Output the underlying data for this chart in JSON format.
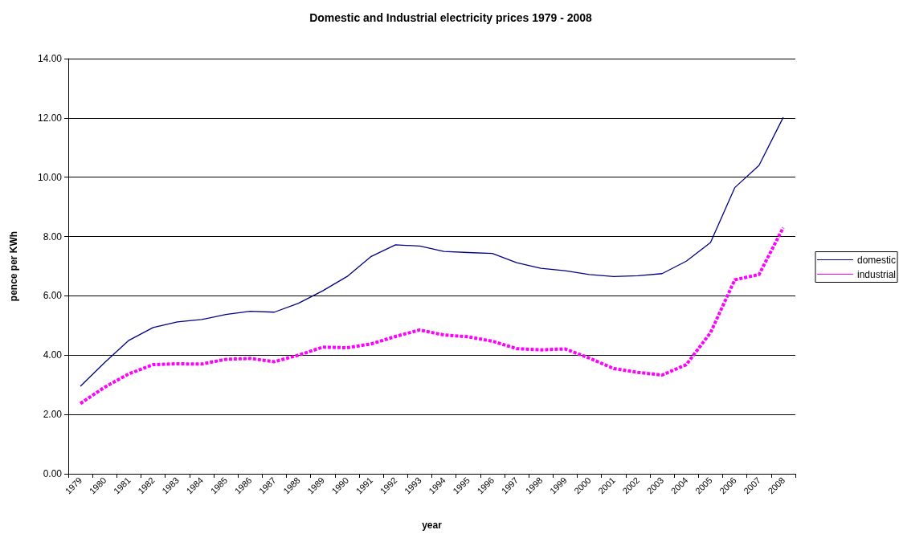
{
  "chart_data": {
    "type": "line",
    "title": "Domestic and Industrial electricity prices 1979 - 2008",
    "xlabel": "year",
    "ylabel": "pence per KWh",
    "categories": [
      "1979",
      "1980",
      "1981",
      "1982",
      "1983",
      "1984",
      "1985",
      "1986",
      "1987",
      "1988",
      "1989",
      "1990",
      "1991",
      "1992",
      "1993",
      "1994",
      "1995",
      "1996",
      "1997",
      "1998",
      "1999",
      "2000",
      "2001",
      "2002",
      "2003",
      "2004",
      "2005",
      "2006",
      "2007",
      "2008"
    ],
    "series": [
      {
        "name": "domestic",
        "color": "#000080",
        "line_style": "solid",
        "values": [
          2.95,
          3.75,
          4.5,
          4.93,
          5.12,
          5.2,
          5.37,
          5.48,
          5.45,
          5.75,
          6.17,
          6.65,
          7.33,
          7.72,
          7.68,
          7.5,
          7.46,
          7.43,
          7.12,
          6.93,
          6.85,
          6.72,
          6.65,
          6.68,
          6.75,
          7.17,
          7.8,
          9.65,
          10.4,
          12.02
        ]
      },
      {
        "name": "industrial",
        "color": "#ff00ff",
        "line_style": "dashed",
        "values": [
          2.37,
          2.92,
          3.37,
          3.68,
          3.71,
          3.7,
          3.86,
          3.89,
          3.78,
          4.0,
          4.27,
          4.25,
          4.38,
          4.63,
          4.85,
          4.68,
          4.62,
          4.47,
          4.22,
          4.18,
          4.21,
          3.9,
          3.55,
          3.42,
          3.33,
          3.68,
          4.76,
          6.54,
          6.72,
          8.3
        ]
      }
    ],
    "ylim": [
      0,
      14
    ],
    "yticks": [
      {
        "value": 0,
        "label": "0.00"
      },
      {
        "value": 2,
        "label": "2.00"
      },
      {
        "value": 4,
        "label": "4.00"
      },
      {
        "value": 6,
        "label": "6.00"
      },
      {
        "value": 8,
        "label": "8.00"
      },
      {
        "value": 10,
        "label": "10.00"
      },
      {
        "value": 12,
        "label": "12.00"
      },
      {
        "value": 14,
        "label": "14.00"
      }
    ],
    "grid": "y",
    "legend": "right",
    "marker": "none"
  }
}
